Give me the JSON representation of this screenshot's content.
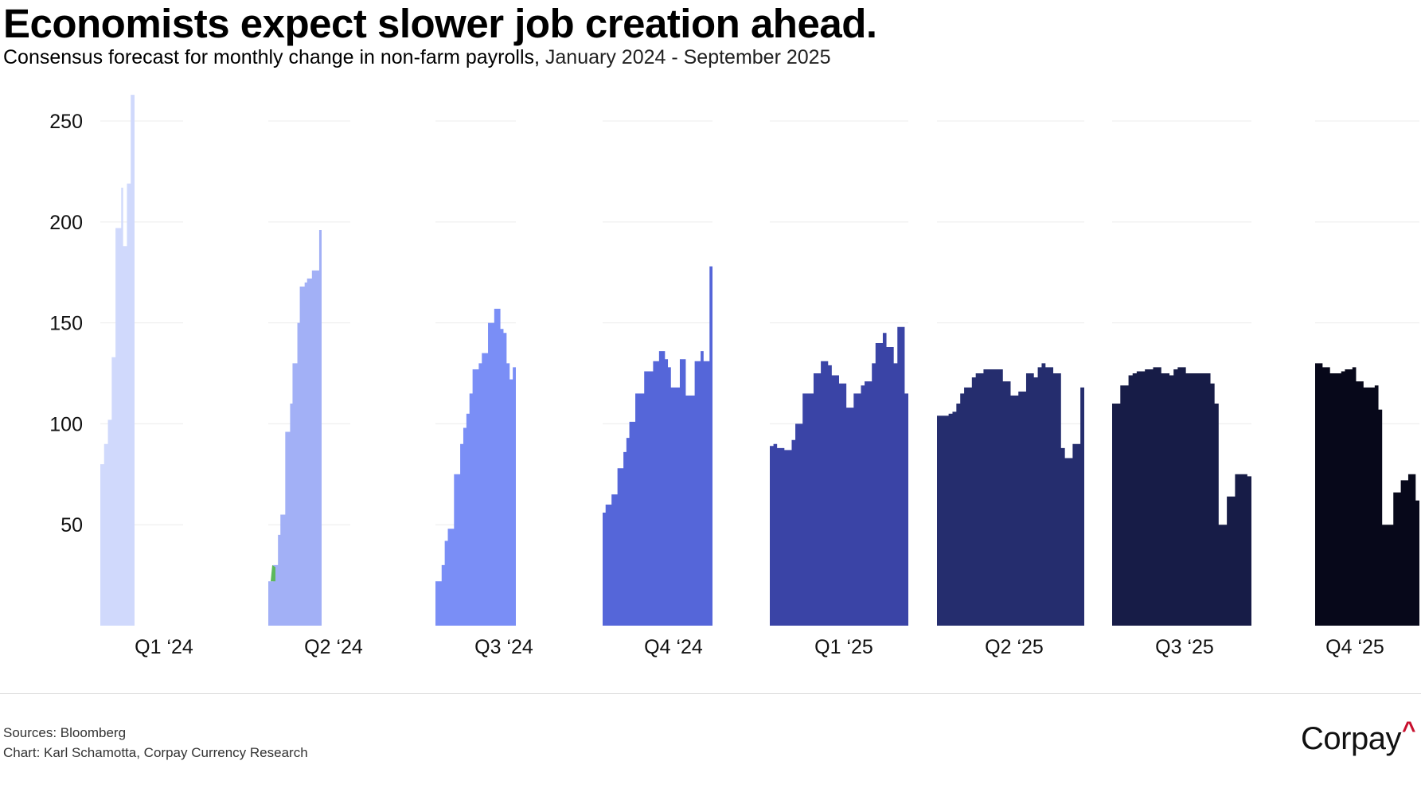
{
  "title": "Economists expect slower job creation ahead.",
  "subtitle_bold": "Consensus forecast for monthly change in non-farm payrolls,",
  "subtitle_light": "January 2024 - September 2025",
  "footer": {
    "source": "Sources: Bloomberg",
    "credit": "Chart: Karl Schamotta, Corpay Currency Research"
  },
  "logo": {
    "text": "Corpay",
    "mark": "^"
  },
  "chart_data": {
    "type": "area",
    "ylim": [
      0,
      265
    ],
    "yticks": [
      50,
      100,
      150,
      200,
      250
    ],
    "grid": true,
    "panels": [
      {
        "label": "Q1 ‘24",
        "color": "#d0d9fc",
        "values": [
          80,
          80,
          90,
          90,
          102,
          102,
          133,
          133,
          197,
          197,
          197,
          217,
          188,
          188,
          219,
          219,
          263,
          263
        ]
      },
      {
        "label": "Q2 ‘24",
        "color": "#a2b0f6",
        "values": [
          22,
          22,
          30,
          30,
          45,
          55,
          55,
          96,
          96,
          110,
          130,
          130,
          150,
          168,
          168,
          170,
          172,
          172,
          176,
          176,
          176,
          196
        ]
      },
      {
        "label": "Q3 ‘24",
        "color": "#7a8ef6",
        "values": [
          22,
          22,
          30,
          42,
          48,
          48,
          75,
          75,
          90,
          98,
          105,
          115,
          127,
          127,
          130,
          135,
          135,
          150,
          150,
          157,
          157,
          147,
          145,
          130,
          122,
          128
        ]
      },
      {
        "label": "Q4 ‘24",
        "color": "#5566d9",
        "values": [
          56,
          60,
          60,
          65,
          65,
          78,
          78,
          86,
          93,
          101,
          101,
          115,
          115,
          115,
          126,
          126,
          126,
          131,
          131,
          136,
          136,
          132,
          128,
          118,
          118,
          118,
          132,
          132,
          114,
          114,
          114,
          131,
          131,
          136,
          131,
          131,
          178
        ]
      },
      {
        "label": "Q1 ‘25",
        "color": "#3a44a6",
        "values": [
          89,
          90,
          88,
          88,
          87,
          87,
          92,
          100,
          100,
          115,
          115,
          115,
          125,
          125,
          131,
          131,
          129,
          124,
          124,
          120,
          120,
          108,
          108,
          115,
          115,
          119,
          121,
          121,
          130,
          140,
          140,
          145,
          138,
          138,
          130,
          148,
          148,
          115
        ]
      },
      {
        "label": "Q2 ‘25",
        "color": "#252d6e",
        "values": [
          104,
          104,
          104,
          105,
          106,
          110,
          115,
          118,
          118,
          123,
          125,
          125,
          127,
          127,
          127,
          127,
          127,
          121,
          121,
          114,
          114,
          116,
          116,
          125,
          125,
          123,
          128,
          130,
          128,
          128,
          125,
          125,
          88,
          83,
          83,
          90,
          90,
          118
        ]
      },
      {
        "label": "Q3 ‘25",
        "color": "#171c47",
        "values": [
          110,
          110,
          119,
          119,
          124,
          125,
          126,
          126,
          127,
          127,
          128,
          128,
          125,
          125,
          124,
          127,
          128,
          128,
          125,
          125,
          125,
          125,
          125,
          125,
          120,
          110,
          50,
          50,
          64,
          64,
          75,
          75,
          75,
          74
        ]
      },
      {
        "label": "Q4 ‘25",
        "color": "#07081a",
        "values": [
          130,
          130,
          128,
          128,
          125,
          125,
          125,
          126,
          127,
          127,
          128,
          121,
          121,
          118,
          118,
          118,
          119,
          107,
          50,
          50,
          50,
          66,
          66,
          72,
          72,
          75,
          75,
          62
        ]
      }
    ]
  }
}
